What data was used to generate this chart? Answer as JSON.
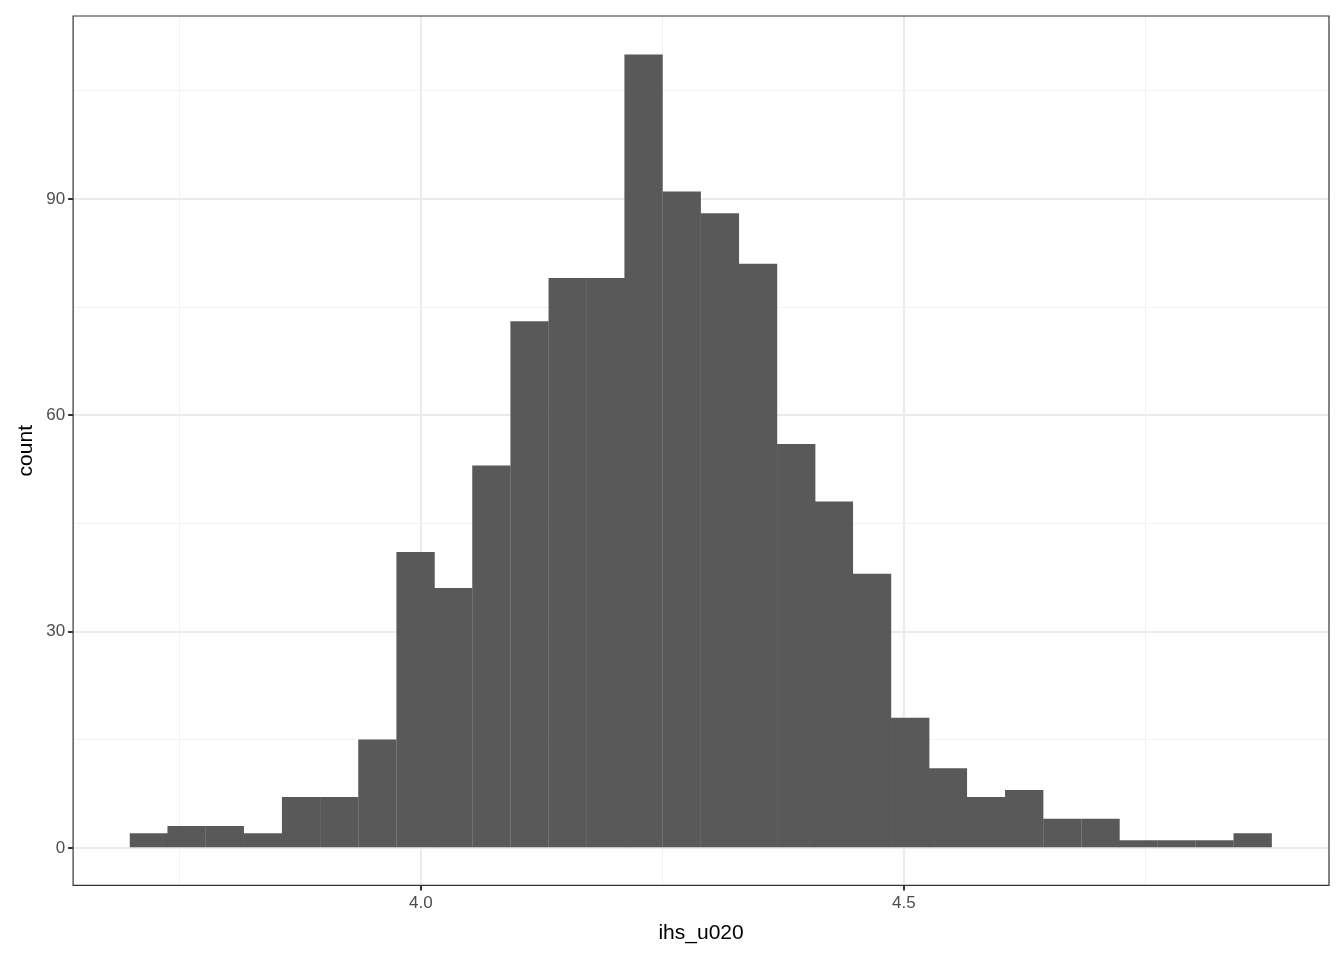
{
  "chart_data": {
    "type": "histogram",
    "xlabel": "ihs_u020",
    "ylabel": "count",
    "color": "#595959",
    "bins": [
      3.699,
      3.738,
      3.777,
      3.817,
      3.856,
      3.896,
      3.935,
      3.975,
      4.014,
      4.053,
      4.093,
      4.132,
      4.172,
      4.211,
      4.25,
      4.29,
      4.329,
      4.369,
      4.408,
      4.447,
      4.487,
      4.526,
      4.565,
      4.605,
      4.644,
      4.684,
      4.723,
      4.762,
      4.802,
      4.841,
      4.881
    ],
    "values": [
      2,
      3,
      3,
      2,
      7,
      7,
      15,
      41,
      36,
      53,
      73,
      79,
      79,
      110,
      91,
      88,
      81,
      56,
      48,
      38,
      18,
      11,
      7,
      8,
      4,
      4,
      1,
      1,
      1,
      2
    ],
    "xlim": [
      3.64,
      4.94
    ],
    "ylim": [
      -5.2,
      115.4
    ],
    "xticks": [
      {
        "value": 3.75,
        "label": null
      },
      {
        "value": 4.0,
        "label": "4.0"
      },
      {
        "value": 4.25,
        "label": null
      },
      {
        "value": 4.5,
        "label": "4.5"
      },
      {
        "value": 4.75,
        "label": null
      }
    ],
    "yticks": [
      0,
      {
        "value": 15,
        "label": null
      },
      30,
      {
        "value": 45,
        "label": null
      },
      60,
      {
        "value": 75,
        "label": null
      },
      90,
      {
        "value": 105,
        "label": null
      }
    ],
    "grid": true
  }
}
